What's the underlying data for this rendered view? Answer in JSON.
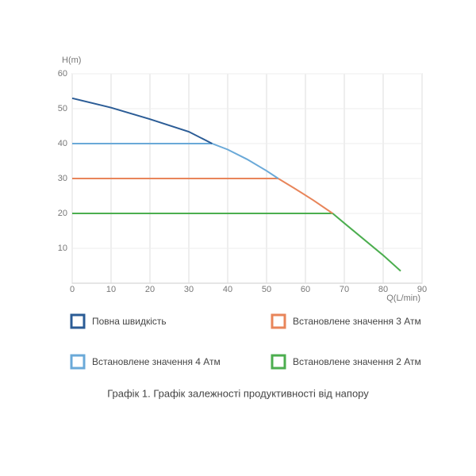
{
  "chart_data": {
    "type": "line",
    "y_label": "H(m)",
    "x_label": "Q(L/min)",
    "caption": "Графік 1. Графік залежності продуктивності від напору",
    "xlim": [
      0,
      90
    ],
    "xticks": [
      0,
      10,
      20,
      30,
      40,
      50,
      60,
      70,
      80,
      90
    ],
    "ylim": [
      0,
      60
    ],
    "yticks": [
      10,
      20,
      30,
      40,
      50,
      60
    ],
    "grid": true,
    "series": [
      {
        "name": "Повна швидкість",
        "color": "#2b5c96",
        "x": [
          0,
          10,
          20,
          30,
          36
        ],
        "values": [
          53,
          50.3,
          47,
          43.4,
          40
        ]
      },
      {
        "name": "Встановлене значення 4 Атм",
        "color": "#6aa9d8",
        "x": [
          0,
          36,
          40,
          45,
          50,
          53
        ],
        "values": [
          40,
          40,
          38.3,
          35.5,
          32.2,
          30
        ]
      },
      {
        "name": "Встановлене значення 3 Атм",
        "color": "#e8855a",
        "x": [
          0,
          53,
          57,
          62,
          67
        ],
        "values": [
          30,
          30,
          27.3,
          23.8,
          20
        ]
      },
      {
        "name": "Встановлене значення 2 Атм",
        "color": "#4cae4f",
        "x": [
          0,
          67,
          70,
          75,
          80,
          84.5
        ],
        "values": [
          20,
          20,
          17.2,
          12.6,
          8,
          3.5
        ]
      }
    ]
  }
}
